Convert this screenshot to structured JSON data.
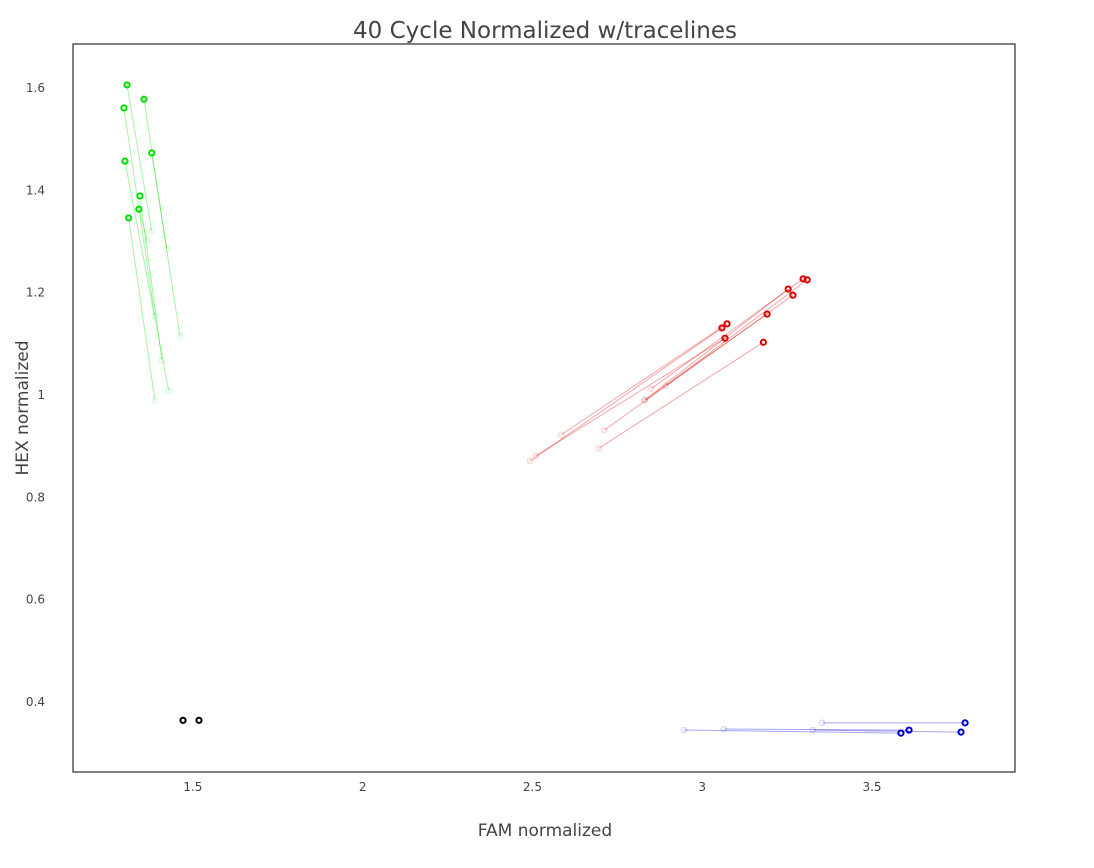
{
  "chart_data": {
    "type": "scatter",
    "title": "40 Cycle Normalized w/tracelines",
    "xlabel": "FAM normalized",
    "ylabel": "HEX normalized",
    "xlim": [
      1.147,
      3.921
    ],
    "ylim": [
      0.263,
      1.686
    ],
    "xticks": [
      1.5,
      2,
      2.5,
      3,
      3.5
    ],
    "xtick_labels": [
      "1.5",
      "2",
      "2.5",
      "3",
      "3.5"
    ],
    "yticks": [
      0.4,
      0.6,
      0.8,
      1,
      1.2,
      1.4,
      1.6
    ],
    "ytick_labels": [
      "0.4",
      "0.6",
      "0.8",
      "1",
      "1.2",
      "1.4",
      "1.6"
    ],
    "grid": false,
    "series": [
      {
        "name": "green",
        "color": "#00dd00",
        "tracelines": [
          {
            "from": [
              1.379,
              1.32
            ],
            "to": [
              1.306,
              1.606
            ]
          },
          {
            "from": [
              1.423,
              1.285
            ],
            "to": [
              1.356,
              1.578
            ]
          },
          {
            "from": [
              1.462,
              1.115
            ],
            "to": [
              1.379,
              1.473
            ]
          },
          {
            "from": [
              1.388,
              1.154
            ],
            "to": [
              1.297,
              1.561
            ]
          },
          {
            "from": [
              1.409,
              1.068
            ],
            "to": [
              1.344,
              1.389
            ]
          },
          {
            "from": [
              1.429,
              1.008
            ],
            "to": [
              1.3,
              1.457
            ]
          },
          {
            "from": [
              1.365,
              1.303
            ],
            "to": [
              1.341,
              1.363
            ]
          },
          {
            "from": [
              1.388,
              0.99
            ],
            "to": [
              1.311,
              1.346
            ]
          }
        ]
      },
      {
        "name": "red",
        "color": "#dd0000",
        "tracelines": [
          {
            "from": [
              2.849,
              1.012
            ],
            "to": [
              3.297,
              1.227
            ]
          },
          {
            "from": [
              2.893,
              1.018
            ],
            "to": [
              3.309,
              1.225
            ]
          },
          {
            "from": [
              2.831,
              0.99
            ],
            "to": [
              3.253,
              1.207
            ]
          },
          {
            "from": [
              2.711,
              0.931
            ],
            "to": [
              3.267,
              1.195
            ]
          },
          {
            "from": [
              2.831,
              0.99
            ],
            "to": [
              3.191,
              1.158
            ]
          },
          {
            "from": [
              2.493,
              0.871
            ],
            "to": [
              3.058,
              1.131
            ]
          },
          {
            "from": [
              2.584,
              0.922
            ],
            "to": [
              3.073,
              1.139
            ]
          },
          {
            "from": [
              2.51,
              0.881
            ],
            "to": [
              3.067,
              1.111
            ]
          },
          {
            "from": [
              2.696,
              0.896
            ],
            "to": [
              3.18,
              1.103
            ]
          }
        ]
      },
      {
        "name": "blue",
        "color": "#0000cc",
        "tracelines": [
          {
            "from": [
              3.353,
              0.359
            ],
            "to": [
              3.774,
              0.359
            ]
          },
          {
            "from": [
              3.326,
              0.345
            ],
            "to": [
              3.762,
              0.341
            ]
          },
          {
            "from": [
              3.064,
              0.347
            ],
            "to": [
              3.609,
              0.345
            ]
          },
          {
            "from": [
              2.946,
              0.345
            ],
            "to": [
              3.585,
              0.339
            ]
          }
        ]
      },
      {
        "name": "black",
        "color": "#000000",
        "tracelines": [
          {
            "from": null,
            "to": [
              1.471,
              0.364
            ]
          },
          {
            "from": null,
            "to": [
              1.518,
              0.364
            ]
          }
        ]
      }
    ]
  }
}
